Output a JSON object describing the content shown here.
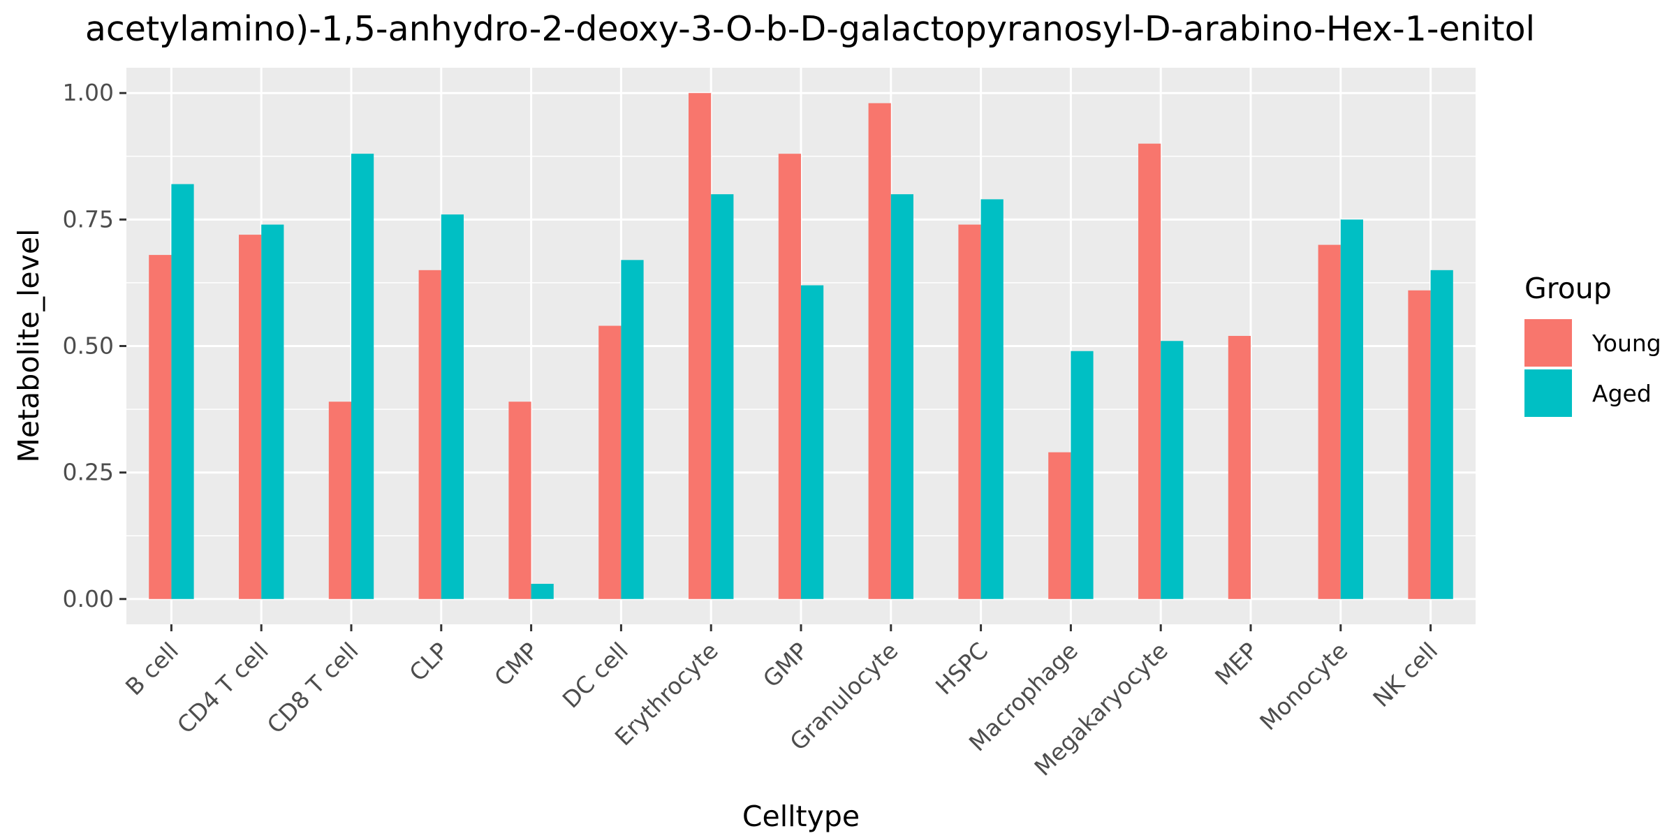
{
  "chart_data": {
    "type": "bar",
    "title": "acetylamino)-1,5-anhydro-2-deoxy-3-O-b-D-galactopyranosyl-D-arabino-Hex-1-enitol",
    "xlabel": "Celltype",
    "ylabel": "Metabolite_level",
    "ylim": [
      -0.05,
      1.05
    ],
    "yticks": [
      0.0,
      0.25,
      0.5,
      0.75,
      1.0
    ],
    "ytick_labels": [
      "0.00",
      "0.25",
      "0.50",
      "0.75",
      "1.00"
    ],
    "grid": true,
    "legend_title": "Group",
    "legend_position": "right",
    "categories": [
      "B cell",
      "CD4 T cell",
      "CD8 T cell",
      "CLP",
      "CMP",
      "DC cell",
      "Erythrocyte",
      "GMP",
      "Granulocyte",
      "HSPC",
      "Macrophage",
      "Megakaryocyte",
      "MEP",
      "Monocyte",
      "NK cell"
    ],
    "series": [
      {
        "name": "Young",
        "color": "#F8766D",
        "values": [
          0.68,
          0.72,
          0.39,
          0.65,
          0.39,
          0.54,
          1.0,
          0.88,
          0.98,
          0.74,
          0.29,
          0.9,
          0.52,
          0.7,
          0.61
        ]
      },
      {
        "name": "Aged",
        "color": "#00BFC4",
        "values": [
          0.82,
          0.74,
          0.88,
          0.76,
          0.03,
          0.67,
          0.8,
          0.62,
          0.8,
          0.79,
          0.49,
          0.51,
          null,
          0.75,
          0.65
        ]
      }
    ],
    "colors": {
      "panel": "#EBEBEB",
      "grid": "#FFFFFF",
      "tick": "#333333"
    }
  }
}
